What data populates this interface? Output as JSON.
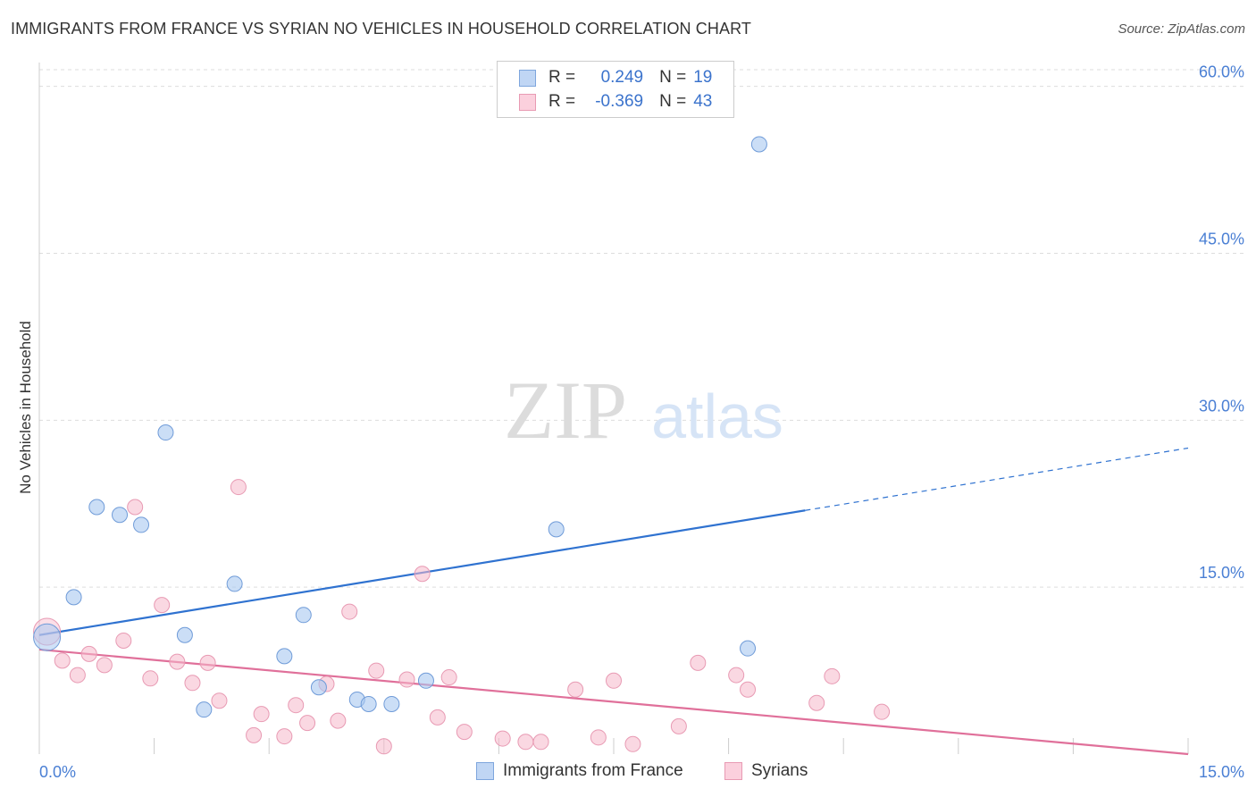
{
  "header": {
    "title": "IMMIGRANTS FROM FRANCE VS SYRIAN NO VEHICLES IN HOUSEHOLD CORRELATION CHART",
    "source": "Source: ZipAtlas.com"
  },
  "watermark": {
    "zip": "ZIP",
    "atlas": "atlas"
  },
  "colors": {
    "france": "#a9c8f0",
    "france_line": "#2f72d0",
    "syrians": "#f6b8cb",
    "syrians_line": "#e0709a",
    "tick_text": "#4a7fd4",
    "grid": "#dddddd"
  },
  "legend_top": {
    "rows": [
      {
        "r_label": "R =",
        "r_value": "0.249",
        "n_label": "N =",
        "n_value": "19"
      },
      {
        "r_label": "R =",
        "r_value": "-0.369",
        "n_label": "N =",
        "n_value": "43"
      }
    ]
  },
  "legend_bottom": {
    "items": [
      {
        "label": "Immigrants from France"
      },
      {
        "label": "Syrians"
      }
    ]
  },
  "chart_data": {
    "type": "scatter",
    "title": "IMMIGRANTS FROM FRANCE VS SYRIAN NO VEHICLES IN HOUSEHOLD CORRELATION CHART",
    "xlabel": "",
    "ylabel": "No Vehicles in Household",
    "xlim": [
      0,
      15
    ],
    "ylim": [
      0,
      61.5
    ],
    "x_tick_labels": [
      "0.0%",
      "15.0%"
    ],
    "y_ticks": [
      15,
      30,
      45,
      60
    ],
    "y_tick_labels": [
      "15.0%",
      "30.0%",
      "45.0%",
      "60.0%"
    ],
    "grid": true,
    "legend_position": "top-center",
    "series": [
      {
        "name": "Immigrants from France",
        "color": "#a9c8f0",
        "r": 0.249,
        "n": 19,
        "points": [
          [
            0.1,
            10.5
          ],
          [
            0.45,
            14.1
          ],
          [
            0.75,
            22.2
          ],
          [
            1.05,
            21.5
          ],
          [
            1.33,
            20.6
          ],
          [
            1.65,
            28.9
          ],
          [
            1.9,
            10.7
          ],
          [
            2.15,
            4.0
          ],
          [
            2.55,
            15.3
          ],
          [
            3.2,
            8.8
          ],
          [
            3.45,
            12.5
          ],
          [
            3.65,
            6.0
          ],
          [
            4.15,
            4.9
          ],
          [
            4.3,
            4.5
          ],
          [
            4.6,
            4.5
          ],
          [
            5.05,
            6.6
          ],
          [
            6.75,
            20.2
          ],
          [
            9.25,
            9.5
          ],
          [
            9.4,
            54.8
          ]
        ],
        "trend": {
          "x": [
            0,
            10.0
          ],
          "y": [
            10.7,
            21.9
          ]
        },
        "trend_extension": {
          "x": [
            10.0,
            15.0
          ],
          "y": [
            21.9,
            27.5
          ]
        }
      },
      {
        "name": "Syrians",
        "color": "#f6b8cb",
        "r": -0.369,
        "n": 43,
        "points": [
          [
            0.1,
            11.0
          ],
          [
            0.3,
            8.4
          ],
          [
            0.5,
            7.1
          ],
          [
            0.65,
            9.0
          ],
          [
            0.85,
            8.0
          ],
          [
            1.1,
            10.2
          ],
          [
            1.25,
            22.2
          ],
          [
            1.45,
            6.8
          ],
          [
            1.6,
            13.4
          ],
          [
            1.8,
            8.3
          ],
          [
            2.0,
            6.4
          ],
          [
            2.2,
            8.2
          ],
          [
            2.35,
            4.8
          ],
          [
            2.6,
            24.0
          ],
          [
            2.8,
            1.7
          ],
          [
            2.9,
            3.6
          ],
          [
            3.2,
            1.6
          ],
          [
            3.35,
            4.4
          ],
          [
            3.5,
            2.8
          ],
          [
            3.75,
            6.3
          ],
          [
            3.9,
            3.0
          ],
          [
            4.05,
            12.8
          ],
          [
            4.4,
            7.5
          ],
          [
            4.5,
            0.7
          ],
          [
            4.8,
            6.7
          ],
          [
            5.0,
            16.2
          ],
          [
            5.2,
            3.3
          ],
          [
            5.35,
            6.9
          ],
          [
            5.55,
            2.0
          ],
          [
            6.05,
            1.4
          ],
          [
            6.35,
            1.1
          ],
          [
            6.55,
            1.1
          ],
          [
            7.0,
            5.8
          ],
          [
            7.3,
            1.5
          ],
          [
            7.5,
            6.6
          ],
          [
            7.75,
            0.9
          ],
          [
            8.35,
            2.5
          ],
          [
            8.6,
            8.2
          ],
          [
            9.1,
            7.1
          ],
          [
            9.25,
            5.8
          ],
          [
            10.15,
            4.6
          ],
          [
            10.35,
            7.0
          ],
          [
            11.0,
            3.8
          ]
        ],
        "trend": {
          "x": [
            0,
            15.0
          ],
          "y": [
            9.4,
            0.0
          ]
        }
      }
    ]
  }
}
